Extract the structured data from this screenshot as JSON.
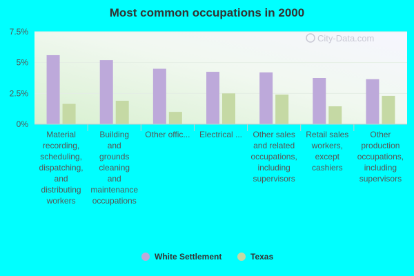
{
  "chart_data": {
    "type": "bar",
    "title": "Most common occupations in 2000",
    "xlabel": "",
    "ylabel": "",
    "ylim": [
      0,
      7.5
    ],
    "yticks": [
      "0%",
      "2.5%",
      "5%",
      "7.5%"
    ],
    "ytick_values": [
      0,
      2.5,
      5,
      7.5
    ],
    "categories": [
      "Material recording, scheduling, dispatching, and distributing workers",
      "Building and grounds cleaning and maintenance occupations",
      "Other offic...",
      "Electrical ...",
      "Other sales and related occupations, including supervisors",
      "Retail sales workers, except cashiers",
      "Other production occupations, including supervisors"
    ],
    "category_lines": [
      [
        "Material",
        "recording,",
        "scheduling,",
        "dispatching,",
        "and",
        "distributing",
        "workers"
      ],
      [
        "Building",
        "and",
        "grounds",
        "cleaning",
        "and",
        "maintenance",
        "occupations"
      ],
      [
        "Other offic..."
      ],
      [
        "Electrical ..."
      ],
      [
        "Other sales",
        "and related",
        "occupations,",
        "including",
        "supervisors"
      ],
      [
        "Retail sales",
        "workers,",
        "except",
        "cashiers"
      ],
      [
        "Other",
        "production",
        "occupations,",
        "including",
        "supervisors"
      ]
    ],
    "series": [
      {
        "name": "White Settlement",
        "color": "#bda9da",
        "values": [
          5.6,
          5.2,
          4.5,
          4.25,
          4.2,
          3.75,
          3.65
        ]
      },
      {
        "name": "Texas",
        "color": "#c5d9a4",
        "values": [
          1.65,
          1.9,
          1.0,
          2.5,
          2.4,
          1.45,
          2.3
        ]
      }
    ],
    "grid": true,
    "legend_position": "bottom"
  },
  "watermark": "City-Data.com"
}
